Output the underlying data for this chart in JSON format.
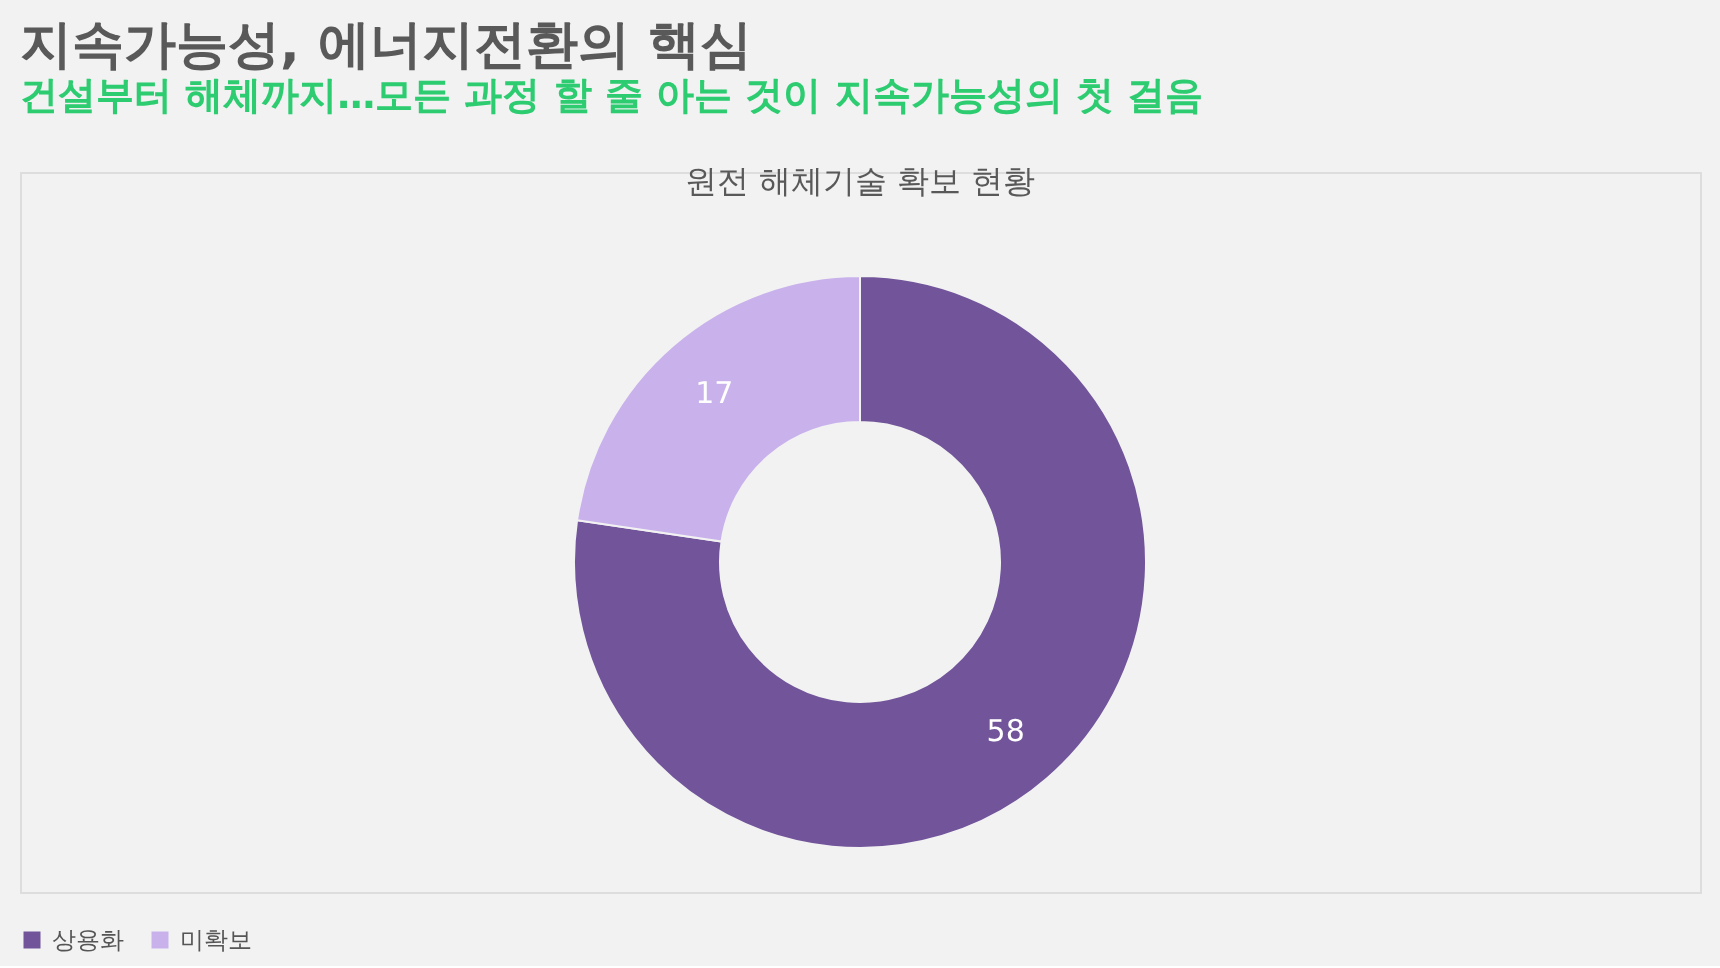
{
  "chart_data": {
    "type": "donut",
    "title": "지속가능성, 에너지전환의 핵심",
    "subtitle": "건설부터 해체까지…모든 과정 할 줄 아는 것이 지속가능성의 첫 걸음",
    "annotations": [
      "원전 해체기술 확보 현황"
    ],
    "categories": [
      "상용화",
      "미확보"
    ],
    "values": [
      58,
      17
    ],
    "colors": [
      "#71549a",
      "#c9b2ec"
    ],
    "data_labels": true,
    "legend": "bottom"
  }
}
